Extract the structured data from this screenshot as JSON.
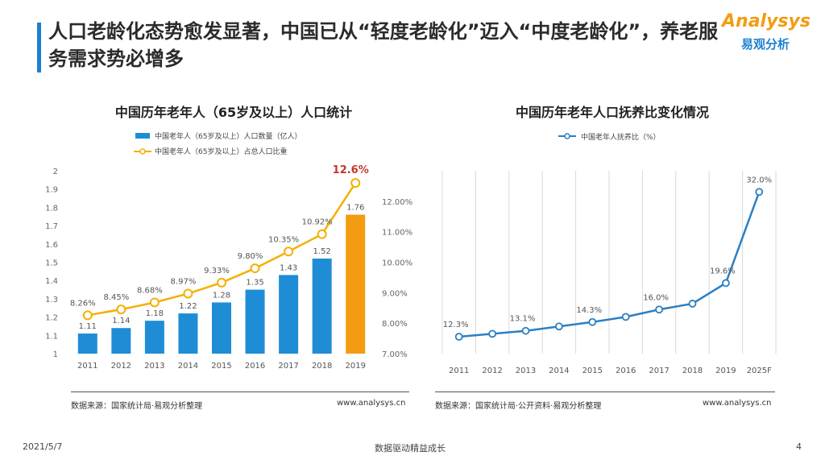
{
  "header": {
    "title": "人口老龄化态势愈发显著，中国已从“轻度老龄化”迈入“中度老龄化”，养老服务需求势必增多"
  },
  "logo": {
    "en": "Analysys",
    "cn": "易观分析"
  },
  "colors": {
    "bar": "#1f8dd6",
    "bar_highlight": "#f39c12",
    "line_left": "#f4b000",
    "line_right": "#2b7fc4",
    "highlight_text": "#c0392b"
  },
  "left_chart": {
    "source": "数据来源：国家统计局·易观分析整理",
    "url": "www.analysys.cn"
  },
  "right_chart": {
    "source": "数据来源：国家统计局·公开资料·易观分析整理",
    "url": "www.analysys.cn"
  },
  "footer": {
    "date": "2021/5/7",
    "slogan": "数据驱动精益成长",
    "page": "4"
  },
  "chart_data": [
    {
      "type": "bar",
      "title": "中国历年老年人（65岁及以上）人口统计",
      "categories": [
        "2011",
        "2012",
        "2013",
        "2014",
        "2015",
        "2016",
        "2017",
        "2018",
        "2019"
      ],
      "series": [
        {
          "name": "中国老年人（65岁及以上）人口数量（亿人）",
          "kind": "bar",
          "values": [
            1.11,
            1.14,
            1.18,
            1.22,
            1.28,
            1.35,
            1.43,
            1.52,
            1.76
          ],
          "labels": [
            "1.11",
            "1.14",
            "1.18",
            "1.22",
            "1.28",
            "1.35",
            "1.43",
            "1.52",
            "1.76"
          ]
        },
        {
          "name": "中国老年人（65岁及以上）占总人口比重",
          "kind": "line",
          "values": [
            8.26,
            8.45,
            8.68,
            8.97,
            9.33,
            9.8,
            10.35,
            10.92,
            12.6
          ],
          "labels": [
            "8.26%",
            "8.45%",
            "8.68%",
            "8.97%",
            "9.33%",
            "9.80%",
            "10.35%",
            "10.92%",
            "12.6%"
          ]
        }
      ],
      "y_left": {
        "min": 1,
        "max": 2,
        "ticks": [
          "1",
          "1.1",
          "1.2",
          "1.3",
          "1.4",
          "1.5",
          "1.6",
          "1.7",
          "1.8",
          "1.9",
          "2"
        ]
      },
      "y_right": {
        "min": 7,
        "max": 13,
        "ticks": [
          "7.00%",
          "8.00%",
          "9.00%",
          "10.00%",
          "11.00%",
          "12.00%"
        ]
      }
    },
    {
      "type": "line",
      "title": "中国历年老年人口抚养比变化情况",
      "categories": [
        "2011",
        "2012",
        "2013",
        "2014",
        "2015",
        "2016",
        "2017",
        "2018",
        "2019",
        "2025F"
      ],
      "series": [
        {
          "name": "中国老年人抚养比（%）",
          "values": [
            12.3,
            12.7,
            13.1,
            13.7,
            14.3,
            15.0,
            16.0,
            16.8,
            19.6,
            32.0
          ],
          "labels": [
            "12.3%",
            "",
            "13.1%",
            "",
            "14.3%",
            "",
            "16.0%",
            "",
            "19.6%",
            "32.0%"
          ]
        }
      ],
      "ylim": [
        10,
        34
      ]
    }
  ]
}
